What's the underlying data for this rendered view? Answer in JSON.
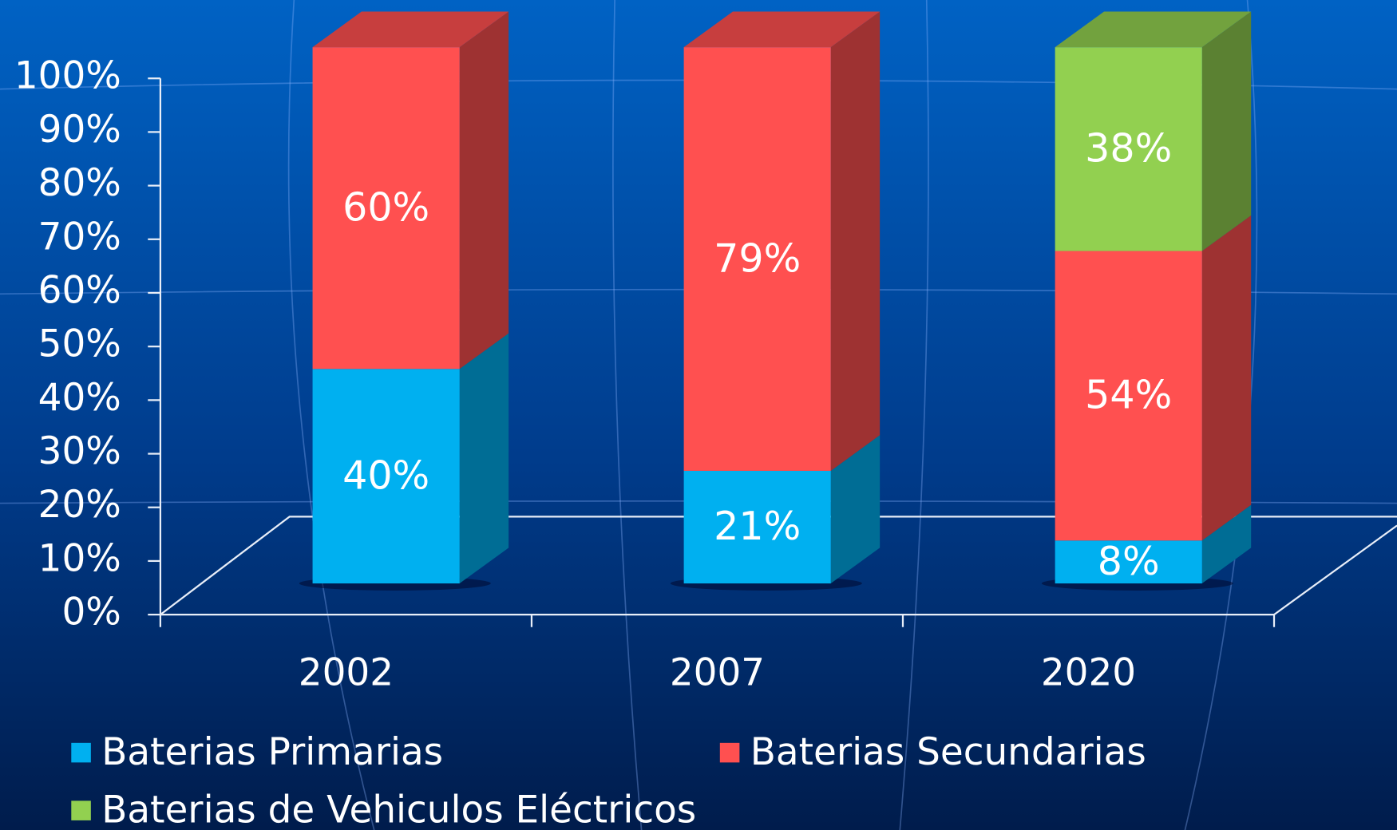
{
  "chart_data": {
    "type": "bar",
    "stacked": true,
    "categories": [
      "2002",
      "2007",
      "2020"
    ],
    "series": [
      {
        "name": "Baterias Primarias",
        "color": "#00b0f0",
        "values": [
          40,
          21,
          8
        ],
        "value_labels": [
          "40%",
          "21%",
          "8%"
        ]
      },
      {
        "name": "Baterias Secundarias",
        "color": "#ff5050",
        "values": [
          60,
          79,
          54
        ],
        "value_labels": [
          "60%",
          "79%",
          "54%"
        ]
      },
      {
        "name": "Baterias de Vehiculos Eléctricos",
        "color": "#92d050",
        "values": [
          null,
          null,
          38
        ],
        "value_labels": [
          null,
          null,
          "38%"
        ]
      }
    ],
    "ylim": [
      0,
      100
    ],
    "yticks": [
      {
        "value": 0,
        "label": "0%"
      },
      {
        "value": 10,
        "label": "10%"
      },
      {
        "value": 20,
        "label": "20%"
      },
      {
        "value": 30,
        "label": "30%"
      },
      {
        "value": 40,
        "label": "40%"
      },
      {
        "value": 50,
        "label": "50%"
      },
      {
        "value": 60,
        "label": "60%"
      },
      {
        "value": 70,
        "label": "70%"
      },
      {
        "value": 80,
        "label": "80%"
      },
      {
        "value": 90,
        "label": "90%"
      },
      {
        "value": 100,
        "label": "100%"
      }
    ],
    "grid": false,
    "legend": "bottom"
  }
}
